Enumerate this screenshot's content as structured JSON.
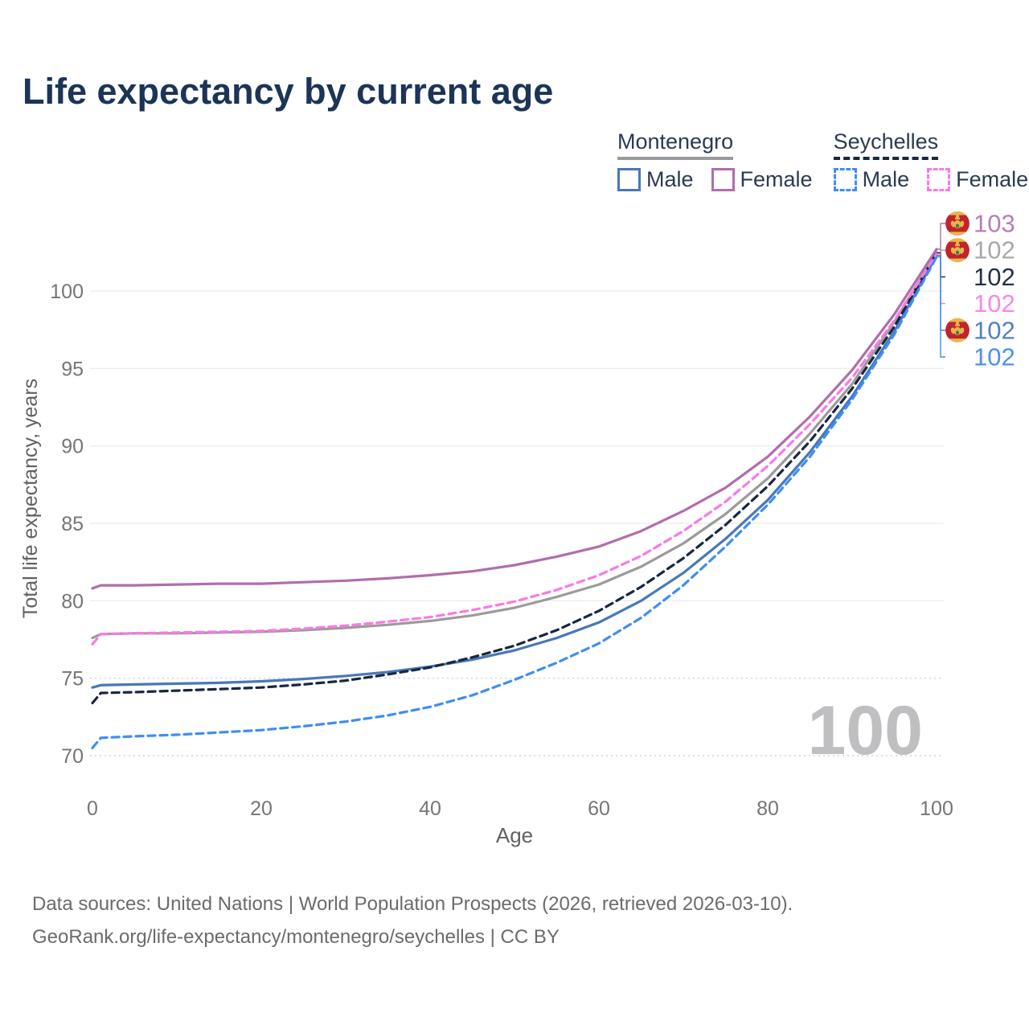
{
  "title": "Life expectancy by current age",
  "legend": {
    "groups": [
      {
        "label": "Montenegro",
        "underline_style": "solid",
        "underline_color": "#9a9a9a",
        "items": [
          {
            "label": "Male",
            "color": "#4878b8",
            "dash": false
          },
          {
            "label": "Female",
            "color": "#b06dad",
            "dash": false
          }
        ]
      },
      {
        "label": "Seychelles",
        "underline_style": "dashed",
        "underline_color": "#16283f",
        "items": [
          {
            "label": "Male",
            "color": "#3f8df5",
            "dash": true
          },
          {
            "label": "Female",
            "color": "#f97ae3",
            "dash": true
          }
        ]
      }
    ]
  },
  "chart_data": {
    "type": "line",
    "title": "Life expectancy by current age",
    "xlabel": "Age",
    "ylabel": "Total life expectancy, years",
    "xlim": [
      0,
      100
    ],
    "ylim": [
      70,
      100
    ],
    "xticks": [
      0,
      20,
      40,
      60,
      80,
      100
    ],
    "yticks": [
      100,
      95,
      90,
      85,
      80,
      75,
      70
    ],
    "dotted_gridlines": [
      75,
      70
    ],
    "grid": true,
    "legend_position": "top-right",
    "watermark": "100",
    "x": [
      0,
      1,
      5,
      10,
      15,
      20,
      25,
      30,
      35,
      40,
      45,
      50,
      55,
      60,
      65,
      70,
      75,
      80,
      85,
      90,
      95,
      100
    ],
    "series": [
      {
        "name": "Montenegro Female",
        "country": "Montenegro",
        "sex": "Female",
        "color": "#b06dad",
        "dash": false,
        "flag": "montenegro-flag",
        "end_label": "103",
        "label_color": "#b57fb4",
        "values": [
          80.8,
          81.0,
          81.0,
          81.05,
          81.1,
          81.1,
          81.2,
          81.3,
          81.45,
          81.65,
          81.9,
          82.3,
          82.85,
          83.5,
          84.5,
          85.8,
          87.3,
          89.3,
          91.9,
          94.9,
          98.5,
          102.7
        ]
      },
      {
        "name": "Montenegro Total",
        "country": "Montenegro",
        "sex": "Both",
        "color": "#9b9b9b",
        "dash": false,
        "flag": "montenegro-flag",
        "end_label": "102",
        "label_color": "#a8a8a8",
        "values": [
          77.6,
          77.85,
          77.9,
          77.9,
          77.95,
          78.0,
          78.1,
          78.25,
          78.45,
          78.7,
          79.05,
          79.55,
          80.25,
          81.05,
          82.2,
          83.7,
          85.6,
          87.9,
          90.8,
          94.0,
          98.0,
          102.5
        ]
      },
      {
        "name": "Seychelles Total",
        "country": "Seychelles",
        "sex": "Both",
        "color": "#16283f",
        "dash": true,
        "flag": "seychelles-flag",
        "end_label": "102",
        "label_color": "#24304a",
        "values": [
          73.4,
          74.05,
          74.1,
          74.2,
          74.3,
          74.4,
          74.6,
          74.85,
          75.25,
          75.7,
          76.35,
          77.1,
          78.1,
          79.35,
          80.9,
          82.75,
          84.9,
          87.4,
          90.3,
          93.7,
          97.7,
          102.45
        ]
      },
      {
        "name": "Seychelles Female",
        "country": "Seychelles",
        "sex": "Female",
        "color": "#f97ae3",
        "dash": true,
        "flag": "seychelles-flag",
        "end_label": "102",
        "label_color": "#f987e6",
        "values": [
          77.2,
          77.85,
          77.9,
          77.95,
          78.0,
          78.05,
          78.2,
          78.4,
          78.65,
          78.95,
          79.4,
          79.95,
          80.7,
          81.65,
          82.9,
          84.5,
          86.4,
          88.7,
          91.4,
          94.4,
          98.1,
          102.4
        ]
      },
      {
        "name": "Montenegro Male",
        "country": "Montenegro",
        "sex": "Male",
        "color": "#4878b8",
        "dash": false,
        "flag": "montenegro-flag",
        "end_label": "102",
        "label_color": "#5081c1",
        "values": [
          74.4,
          74.55,
          74.6,
          74.65,
          74.7,
          74.8,
          74.95,
          75.15,
          75.4,
          75.75,
          76.2,
          76.8,
          77.6,
          78.6,
          80.0,
          81.8,
          84.0,
          86.5,
          89.6,
          93.2,
          97.4,
          102.3
        ]
      },
      {
        "name": "Seychelles Male",
        "country": "Seychelles",
        "sex": "Male",
        "color": "#3f8df5",
        "dash": true,
        "flag": "seychelles-flag",
        "end_label": "102",
        "label_color": "#4a90f0",
        "values": [
          70.5,
          71.15,
          71.25,
          71.35,
          71.5,
          71.65,
          71.9,
          72.2,
          72.6,
          73.15,
          73.9,
          74.9,
          76.0,
          77.25,
          78.9,
          81.0,
          83.5,
          86.2,
          89.3,
          93.0,
          97.2,
          102.2
        ]
      }
    ]
  },
  "footer": {
    "line1": "Data sources: United Nations | World Population Prospects (2026, retrieved 2026-03-10).",
    "line2": "GeoRank.org/life-expectancy/montenegro/seychelles | CC BY"
  }
}
